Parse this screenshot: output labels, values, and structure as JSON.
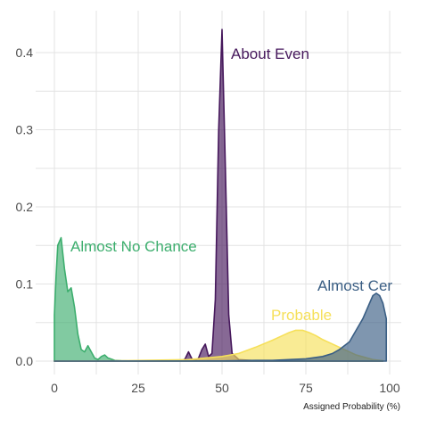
{
  "chart_data": {
    "type": "area",
    "title": "",
    "xlabel": "Assigned Probability (%)",
    "ylabel": "",
    "xlim": [
      0,
      100
    ],
    "ylim": [
      0,
      0.43
    ],
    "x_ticks": [
      0,
      25,
      50,
      75,
      100
    ],
    "y_ticks": [
      0.0,
      0.1,
      0.2,
      0.3,
      0.4
    ],
    "x_tick_labels": [
      "0",
      "25",
      "50",
      "75",
      "100"
    ],
    "y_tick_labels": [
      "0.0",
      "0.1",
      "0.2",
      "0.3",
      "0.4"
    ],
    "grid": true,
    "legend": "none (direct labels)",
    "series": [
      {
        "label": "Almost No Chance",
        "color": "#3dae6e",
        "x": [
          0,
          0.5,
          1,
          2,
          3,
          4,
          5,
          6,
          7,
          8,
          9,
          10,
          11,
          12,
          13,
          14,
          15,
          16,
          18,
          20,
          22,
          25,
          30,
          40,
          50,
          60,
          70,
          80,
          90,
          98
        ],
        "y": [
          0.06,
          0.11,
          0.15,
          0.16,
          0.12,
          0.09,
          0.095,
          0.07,
          0.035,
          0.015,
          0.012,
          0.02,
          0.012,
          0.004,
          0.002,
          0.006,
          0.008,
          0.004,
          0.001,
          0.0005,
          0.0003,
          0.0002,
          0.0001,
          0.0001,
          0.0001,
          0.0001,
          0.0001,
          0.0001,
          0.0001,
          0.0001
        ]
      },
      {
        "label": "About Even",
        "color": "#46185c",
        "x": [
          0,
          38,
          39,
          40,
          41,
          42,
          43,
          44,
          45,
          46,
          47,
          48,
          49,
          50,
          51,
          52,
          53,
          55,
          60,
          70,
          80,
          90,
          98
        ],
        "y": [
          0.0,
          0.0,
          0.003,
          0.012,
          0.003,
          0.001,
          0.004,
          0.015,
          0.022,
          0.006,
          0.01,
          0.08,
          0.3,
          0.43,
          0.25,
          0.06,
          0.01,
          0.002,
          0.0005,
          0.0002,
          0.0001,
          0.0,
          0.0
        ]
      },
      {
        "label": "Probable",
        "color": "#f6e05a",
        "x": [
          0,
          20,
          40,
          45,
          50,
          55,
          60,
          65,
          68,
          70,
          72,
          74,
          76,
          78,
          80,
          85,
          90,
          95,
          98
        ],
        "y": [
          0.0,
          0.0005,
          0.002,
          0.004,
          0.006,
          0.01,
          0.018,
          0.027,
          0.033,
          0.037,
          0.04,
          0.04,
          0.037,
          0.033,
          0.028,
          0.018,
          0.008,
          0.002,
          0.0005
        ]
      },
      {
        "label": "Almost Certain",
        "color": "#3a5e84",
        "x": [
          0,
          50,
          60,
          65,
          70,
          75,
          80,
          83,
          85,
          88,
          90,
          92,
          93,
          94,
          95,
          96,
          97,
          98,
          99
        ],
        "y": [
          0.0,
          0.0002,
          0.001,
          0.001,
          0.002,
          0.003,
          0.006,
          0.01,
          0.015,
          0.025,
          0.04,
          0.055,
          0.065,
          0.075,
          0.085,
          0.088,
          0.085,
          0.075,
          0.055
        ]
      }
    ],
    "annotations": [
      {
        "text": "About Even",
        "series": "About Even"
      },
      {
        "text": "Almost No Chance",
        "series": "Almost No Chance"
      },
      {
        "text": "Almost Cer",
        "series": "Almost Certain"
      },
      {
        "text": "Probable",
        "series": "Probable"
      }
    ]
  }
}
